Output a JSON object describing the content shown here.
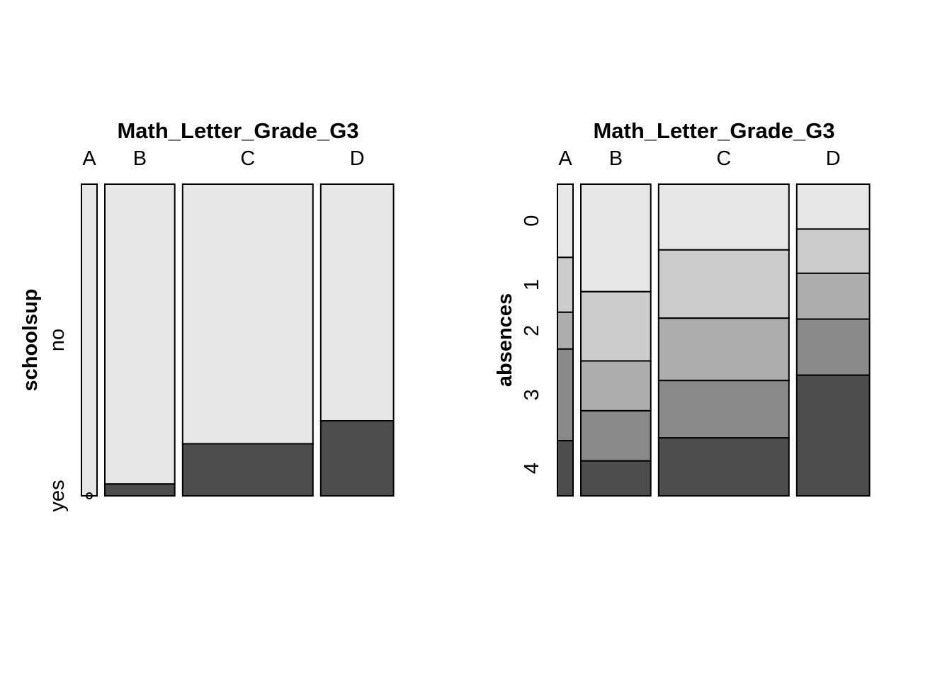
{
  "chart_data": [
    {
      "type": "mosaic",
      "title": "Math_Letter_Grade_G3",
      "ylabel": "schoolsup",
      "categories": [
        "A",
        "B",
        "C",
        "D"
      ],
      "column_widths": [
        0.054,
        0.242,
        0.451,
        0.252
      ],
      "levels": [
        "no",
        "yes"
      ],
      "proportions": [
        [
          1.0,
          0.0
        ],
        [
          0.962,
          0.038
        ],
        [
          0.833,
          0.167
        ],
        [
          0.759,
          0.241
        ]
      ],
      "level_colors": [
        "#e6e6e6",
        "#4d4d4d"
      ]
    },
    {
      "type": "mosaic",
      "title": "Math_Letter_Grade_G3",
      "ylabel": "absences",
      "categories": [
        "A",
        "B",
        "C",
        "D"
      ],
      "column_widths": [
        0.054,
        0.242,
        0.451,
        0.252
      ],
      "levels": [
        "0",
        "1",
        "2",
        "3",
        "4"
      ],
      "proportions": [
        [
          0.235,
          0.176,
          0.118,
          0.294,
          0.177
        ],
        [
          0.345,
          0.222,
          0.16,
          0.161,
          0.112
        ],
        [
          0.211,
          0.219,
          0.2,
          0.184,
          0.186
        ],
        [
          0.144,
          0.142,
          0.147,
          0.18,
          0.387
        ]
      ],
      "level_colors": [
        "#e6e6e6",
        "#cccccc",
        "#adadad",
        "#8a8a8a",
        "#4d4d4d"
      ]
    }
  ]
}
